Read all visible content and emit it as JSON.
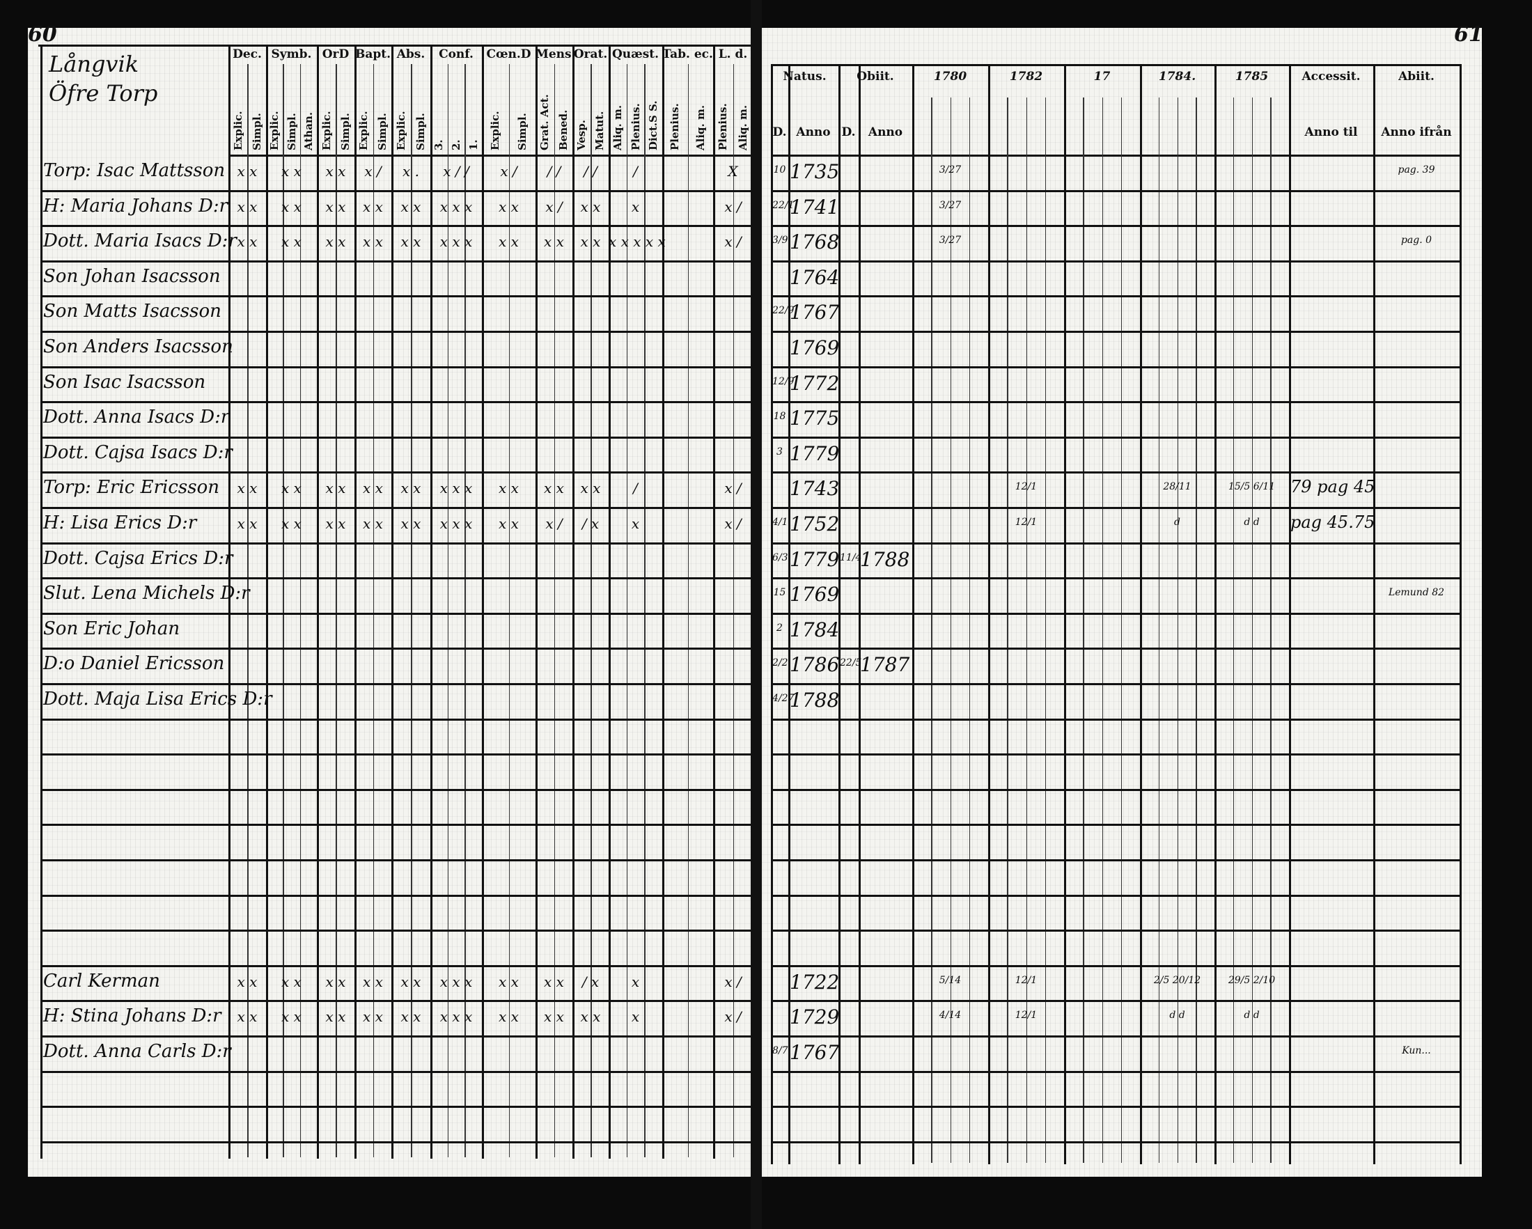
{
  "left_page": {
    "page_number": "60",
    "place_title": [
      "Långvik",
      "Öfre Torp"
    ],
    "columns": [
      {
        "head": "Dec.",
        "subs": [
          "Explic.",
          "Simpl."
        ]
      },
      {
        "head": "Symb.",
        "subs": [
          "Explic.",
          "Simpl.",
          "Athan."
        ]
      },
      {
        "head": "OrD",
        "subs": [
          "Explic.",
          "Simpl."
        ]
      },
      {
        "head": "Bapt.",
        "subs": [
          "Explic.",
          "Simpl."
        ]
      },
      {
        "head": "Abs.",
        "subs": [
          "Explic.",
          "Simpl."
        ]
      },
      {
        "head": "Conf.",
        "subs": [
          "3.",
          "2.",
          "1."
        ]
      },
      {
        "head": "Cœn.D",
        "subs": [
          "Explic.",
          "Simpl."
        ]
      },
      {
        "head": "Mens.",
        "subs": [
          "Grat. Act.",
          "Bened."
        ]
      },
      {
        "head": "Orat.",
        "subs": [
          "Vesp.",
          "Matut."
        ]
      },
      {
        "head": "Quæst.",
        "subs": [
          "Aliq. m.",
          "Plenius.",
          "Dict.S S."
        ]
      },
      {
        "head": "Tab. ec.",
        "subs": [
          "Plenius.",
          "Aliq. m."
        ]
      },
      {
        "head": "L. d.",
        "subs": [
          "Plenius.",
          "Aliq. m."
        ]
      }
    ],
    "rows": [
      {
        "row": 0,
        "name": "Torp: Isac Mattsson",
        "marks": [
          "x x",
          "x x",
          "x x",
          "x /",
          "x .",
          "x / /",
          "x /",
          "/ /",
          "/ /",
          "/",
          "",
          "X"
        ]
      },
      {
        "row": 1,
        "name": "H: Maria Johans D:r",
        "marks": [
          "x x",
          "x x",
          "x x",
          "x x",
          "x x",
          "x x x",
          "x x",
          "x /",
          "x x",
          "x",
          "",
          "x /"
        ]
      },
      {
        "row": 2,
        "name": "Dott. Maria Isacs D:r",
        "marks": [
          "x x",
          "x x",
          "x x",
          "x x",
          "x x",
          "x x x",
          "x x",
          "x x",
          "x x",
          "x x x x x",
          "",
          "x /"
        ]
      },
      {
        "row": 3,
        "name": "Son Johan Isacsson",
        "marks": []
      },
      {
        "row": 4,
        "name": "Son Matts Isacsson",
        "marks": []
      },
      {
        "row": 5,
        "name": "Son Anders Isacsson",
        "marks": []
      },
      {
        "row": 6,
        "name": "Son Isac Isacsson",
        "marks": []
      },
      {
        "row": 7,
        "name": "Dott. Anna Isacs D:r",
        "marks": []
      },
      {
        "row": 8,
        "name": "Dott. Cajsa Isacs D:r",
        "marks": []
      },
      {
        "row": 9,
        "name": "Torp: Eric Ericsson",
        "marks": [
          "x x",
          "x x",
          "x x",
          "x x",
          "x x",
          "x x x",
          "x x",
          "x x",
          "x x",
          "/",
          "",
          "x /"
        ]
      },
      {
        "row": 10,
        "name": "H: Lisa Erics D:r",
        "marks": [
          "x x",
          "x x",
          "x x",
          "x x",
          "x x",
          "x x x",
          "x x",
          "x /",
          "/ x",
          "x",
          "",
          "x /"
        ]
      },
      {
        "row": 11,
        "name": "Dott. Cajsa Erics D:r",
        "marks": []
      },
      {
        "row": 12,
        "name": "Slut. Lena Michels D:r",
        "marks": []
      },
      {
        "row": 13,
        "name": "Son Eric Johan",
        "marks": []
      },
      {
        "row": 14,
        "name": "D:o Daniel Ericsson",
        "marks": []
      },
      {
        "row": 15,
        "name": "Dott. Maja Lisa Erics D:r",
        "marks": []
      },
      {
        "row": 23,
        "name": "Carl Kerman",
        "marks": [
          "x x",
          "x x",
          "x x",
          "x x",
          "x x",
          "x x x",
          "x x",
          "x x",
          "/ x",
          "x",
          "",
          "x /"
        ]
      },
      {
        "row": 24,
        "name": "H: Stina Johans D:r",
        "marks": [
          "x x",
          "x x",
          "x x",
          "x x",
          "x x",
          "x x x",
          "x x",
          "x x",
          "x x",
          "x",
          "",
          "x /"
        ]
      },
      {
        "row": 25,
        "name": "Dott. Anna Carls D:r",
        "marks": []
      }
    ]
  },
  "right_page": {
    "page_number": "61",
    "headers": {
      "natus": "Natus.",
      "natus_d": "D.",
      "natus_anno": "Anno",
      "obiit": "Obiit.",
      "obiit_d": "D.",
      "obiit_anno": "Anno",
      "years": [
        "1780",
        "1782",
        "17",
        "1784.",
        "1785"
      ],
      "accessit": "Accessit.",
      "accessit_sub": "Anno til",
      "abiit": "Abiit.",
      "abiit_sub": "Anno ifrån"
    },
    "rows": [
      {
        "row": 0,
        "natus_d": "10",
        "natus_anno": "1735",
        "y1780": "3/27",
        "abiit": "pag. 39"
      },
      {
        "row": 1,
        "natus_d": "22/1",
        "natus_anno": "1741",
        "y1780": "3/27"
      },
      {
        "row": 2,
        "natus_d": "3/9",
        "natus_anno": "1768",
        "y1780": "3/27",
        "abiit": "pag. 0"
      },
      {
        "row": 3,
        "natus_anno": "1764"
      },
      {
        "row": 4,
        "natus_d": "22/9",
        "natus_anno": "1767"
      },
      {
        "row": 5,
        "natus_anno": "1769"
      },
      {
        "row": 6,
        "natus_d": "12/9",
        "natus_anno": "1772"
      },
      {
        "row": 7,
        "natus_d": "18",
        "natus_anno": "1775"
      },
      {
        "row": 8,
        "natus_d": "3",
        "natus_anno": "1779"
      },
      {
        "row": 9,
        "natus_anno": "1743",
        "y1782": "12/1",
        "y1784": "28/11",
        "y1785": "15/5   6/11",
        "accessit": "79 pag 45"
      },
      {
        "row": 10,
        "natus_d": "4/1",
        "natus_anno": "1752",
        "y1782": "12/1",
        "y1784": "d",
        "y1785": "d   d",
        "accessit": "pag 45.75"
      },
      {
        "row": 11,
        "natus_d": "6/3",
        "natus_anno": "1779",
        "obiit_d": "11/4",
        "obiit_anno": "1788"
      },
      {
        "row": 12,
        "natus_d": "15",
        "natus_anno": "1769",
        "abiit": "Lemund 82"
      },
      {
        "row": 13,
        "natus_d": "2",
        "natus_anno": "1784"
      },
      {
        "row": 14,
        "natus_d": "2/2",
        "natus_anno": "1786",
        "obiit_d": "22/5",
        "obiit_anno": "1787"
      },
      {
        "row": 15,
        "natus_d": "4/27",
        "natus_anno": "1788"
      },
      {
        "row": 23,
        "natus_anno": "1722",
        "y1780": "5/14",
        "y1782": "12/1",
        "y1784": "2/5  20/12",
        "y1785": "29/5  2/10"
      },
      {
        "row": 24,
        "natus_anno": "1729",
        "y1780": "4/14",
        "y1782": "12/1",
        "y1784": "d   d",
        "y1785": "d   d"
      },
      {
        "row": 25,
        "natus_d": "8/7",
        "natus_anno": "1767",
        "abiit": "Kun..."
      }
    ]
  }
}
